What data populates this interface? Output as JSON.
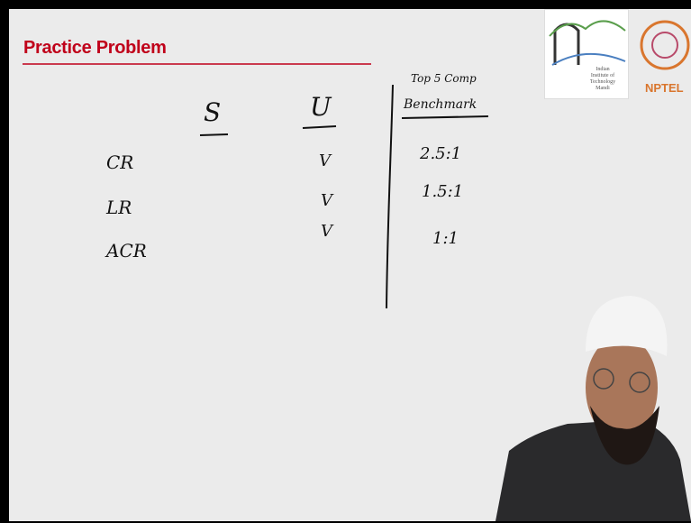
{
  "header": {
    "title": "Practice Problem"
  },
  "logos": {
    "institute": [
      "Indian",
      "Institute of",
      "Technology",
      "Mandi"
    ],
    "nptel": "NPTEL"
  },
  "board": {
    "columns": [
      "S",
      "U"
    ],
    "benchmark_header": [
      "Top 5 Comp",
      "Benchmark"
    ],
    "rows": [
      {
        "label": "CR",
        "mark": "V",
        "benchmark": "2.5:1"
      },
      {
        "label": "LR",
        "mark": "V",
        "benchmark": "1.5:1"
      },
      {
        "label": "ACR",
        "mark": "V",
        "benchmark": "1:1"
      }
    ]
  }
}
